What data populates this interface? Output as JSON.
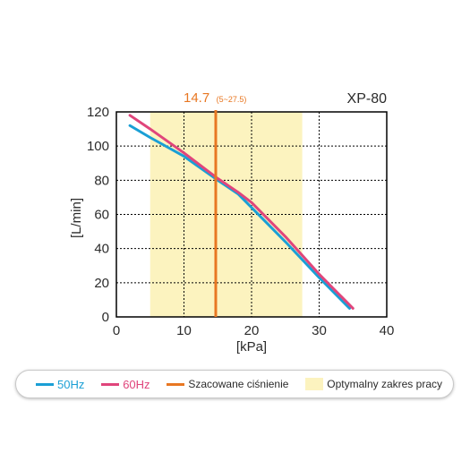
{
  "chart_data": {
    "type": "line",
    "model": "XP-80",
    "xlabel": "[kPa]",
    "ylabel": "[L/min]",
    "xlim": [
      0,
      40
    ],
    "ylim": [
      0,
      120
    ],
    "xticks": [
      0,
      10,
      20,
      30,
      40
    ],
    "yticks": [
      0,
      20,
      40,
      60,
      80,
      100,
      120
    ],
    "grid": true,
    "series": [
      {
        "name": "50Hz",
        "color": "#1a9fd5",
        "x": [
          2,
          5,
          10,
          15,
          18,
          20,
          25,
          30,
          34.5
        ],
        "y": [
          112,
          105,
          94,
          80,
          72,
          64,
          44,
          23,
          5
        ]
      },
      {
        "name": "60Hz",
        "color": "#e0457b",
        "x": [
          2,
          5,
          10,
          15,
          18,
          20,
          25,
          30,
          35
        ],
        "y": [
          118,
          110,
          96,
          81,
          73,
          67,
          47,
          25,
          5
        ]
      }
    ],
    "estimated_pressure": {
      "x": 14.7,
      "label": "14.7",
      "range_label": "(5~27.5)",
      "color": "#e87722"
    },
    "optimal_range": {
      "x0": 5,
      "x1": 27.5,
      "color": "#fcf3bf"
    },
    "legend": {
      "items": [
        {
          "label": "50Hz",
          "color": "#1a9fd5"
        },
        {
          "label": "60Hz",
          "color": "#e0457b"
        },
        {
          "label": "Szacowane ciśnienie",
          "color": "#e87722"
        },
        {
          "label": "Optymalny zakres pracy",
          "color": "#fcf3bf"
        }
      ]
    }
  }
}
